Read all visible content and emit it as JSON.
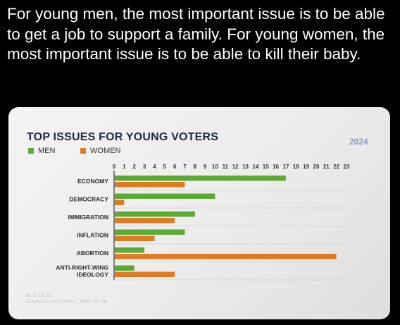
{
  "post": {
    "text": "For young men, the most important issue is to be able to get a job to support a family. For young women, the most important issue is to be able to kill their baby."
  },
  "card": {
    "year": "2024",
    "footnote_age": "AGE 18-29",
    "footnote_source": "SOURCE: WSJ POLL, FEB. 21-28"
  },
  "colors": {
    "men": "#5aaa35",
    "women": "#e07a22",
    "title": "#1e2a44",
    "year": "#8b9dbf"
  },
  "chart_data": {
    "type": "bar",
    "orientation": "horizontal",
    "title": "TOP ISSUES FOR YOUNG VOTERS",
    "categories": [
      "ECONOMY",
      "DEMOCRACY",
      "IMMIGRATION",
      "INFLATION",
      "ABORTION",
      "ANTI-RIGHT-WING IDEOLOGY"
    ],
    "category_lines": [
      [
        "ECONOMY"
      ],
      [
        "DEMOCRACY"
      ],
      [
        "IMMIGRATION"
      ],
      [
        "INFLATION"
      ],
      [
        "ABORTION"
      ],
      [
        "ANTI-RIGHT-WING",
        "IDEOLOGY"
      ]
    ],
    "series": [
      {
        "name": "MEN",
        "values": [
          17,
          10,
          8,
          7,
          3,
          2
        ]
      },
      {
        "name": "WOMEN",
        "values": [
          7,
          1,
          6,
          4,
          22,
          6
        ]
      }
    ],
    "ticks": [
      0,
      1,
      2,
      3,
      4,
      5,
      6,
      7,
      8,
      9,
      10,
      11,
      12,
      13,
      14,
      15,
      16,
      17,
      18,
      19,
      20,
      21,
      22,
      23
    ],
    "xlim": [
      0,
      23
    ],
    "legend": "top-left",
    "grid": false
  }
}
